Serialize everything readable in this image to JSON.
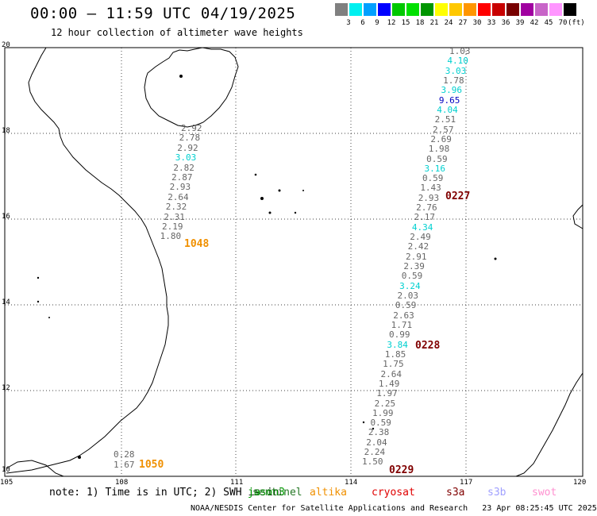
{
  "title": "00:00 – 11:59 UTC 04/19/2025",
  "subtitle": "12 hour collection of altimeter wave heights",
  "scale": {
    "labels": [
      "3",
      "6",
      "9",
      "12",
      "15",
      "18",
      "21",
      "24",
      "27",
      "30",
      "33",
      "36",
      "39",
      "42",
      "45",
      "70"
    ],
    "unit": "(ft)",
    "colors": [
      "#808080",
      "#00f0f0",
      "#00a0ff",
      "#0000ff",
      "#00c800",
      "#00e000",
      "#009600",
      "#ffff00",
      "#ffc800",
      "#ff9600",
      "#ff0000",
      "#c80000",
      "#780000",
      "#a000a0",
      "#c864c8",
      "#ff96ff",
      "#000000"
    ]
  },
  "axes": {
    "lon_labels": [
      "105",
      "108",
      "111",
      "114",
      "117",
      "120"
    ],
    "lat_labels": [
      "10",
      "12",
      "14",
      "16",
      "18",
      "20"
    ]
  },
  "passes": [
    {
      "label": "1048",
      "color": "#f09000"
    },
    {
      "label": "1050",
      "color": "#f09000"
    },
    {
      "label": "0227",
      "color": "#800000"
    },
    {
      "label": "0228",
      "color": "#800000"
    },
    {
      "label": "0229",
      "color": "#800000"
    }
  ],
  "track_west": [
    {
      "v": "2.92",
      "c": "#666666"
    },
    {
      "v": "2.78",
      "c": "#666666"
    },
    {
      "v": "2.92",
      "c": "#666666"
    },
    {
      "v": "3.03",
      "c": "#00d0d0"
    },
    {
      "v": "2.82",
      "c": "#666666"
    },
    {
      "v": "2.87",
      "c": "#666666"
    },
    {
      "v": "2.93",
      "c": "#666666"
    },
    {
      "v": "2.64",
      "c": "#666666"
    },
    {
      "v": "2.32",
      "c": "#666666"
    },
    {
      "v": "2.31",
      "c": "#666666"
    },
    {
      "v": "2.19",
      "c": "#666666"
    },
    {
      "v": "1.80",
      "c": "#666666"
    }
  ],
  "track_south": [
    {
      "v": "0.28",
      "c": "#666666"
    },
    {
      "v": "1.67",
      "c": "#666666"
    }
  ],
  "track_east": [
    {
      "v": "1.03",
      "c": "#666666"
    },
    {
      "v": "4.10",
      "c": "#00d0d0"
    },
    {
      "v": "3.03",
      "c": "#00d0d0"
    },
    {
      "v": "1.78",
      "c": "#666666"
    },
    {
      "v": "3.96",
      "c": "#00d0d0"
    },
    {
      "v": "9.65",
      "c": "#0000c0"
    },
    {
      "v": "4.04",
      "c": "#00d0d0"
    },
    {
      "v": "2.51",
      "c": "#666666"
    },
    {
      "v": "2.57",
      "c": "#666666"
    },
    {
      "v": "2.69",
      "c": "#666666"
    },
    {
      "v": "1.98",
      "c": "#666666"
    },
    {
      "v": "0.59",
      "c": "#666666"
    },
    {
      "v": "3.16",
      "c": "#00d0d0"
    },
    {
      "v": "0.59",
      "c": "#666666"
    },
    {
      "v": "1.43",
      "c": "#666666"
    },
    {
      "v": "2.93",
      "c": "#666666"
    },
    {
      "v": "2.76",
      "c": "#666666"
    },
    {
      "v": "2.17",
      "c": "#666666"
    },
    {
      "v": "4.34",
      "c": "#00d0d0"
    },
    {
      "v": "2.49",
      "c": "#666666"
    },
    {
      "v": "2.42",
      "c": "#666666"
    },
    {
      "v": "2.91",
      "c": "#666666"
    },
    {
      "v": "2.39",
      "c": "#666666"
    },
    {
      "v": "0.59",
      "c": "#666666"
    },
    {
      "v": "3.24",
      "c": "#00d0d0"
    },
    {
      "v": "2.03",
      "c": "#666666"
    },
    {
      "v": "0.59",
      "c": "#666666"
    },
    {
      "v": "2.63",
      "c": "#666666"
    },
    {
      "v": "1.71",
      "c": "#666666"
    },
    {
      "v": "0.99",
      "c": "#666666"
    },
    {
      "v": "3.84",
      "c": "#00d0d0"
    },
    {
      "v": "1.85",
      "c": "#666666"
    },
    {
      "v": "1.75",
      "c": "#666666"
    },
    {
      "v": "2.64",
      "c": "#666666"
    },
    {
      "v": "1.49",
      "c": "#666666"
    },
    {
      "v": "1.97",
      "c": "#666666"
    },
    {
      "v": "2.25",
      "c": "#666666"
    },
    {
      "v": "1.99",
      "c": "#666666"
    },
    {
      "v": "0.59",
      "c": "#666666"
    },
    {
      "v": "2.38",
      "c": "#666666"
    },
    {
      "v": "2.04",
      "c": "#666666"
    },
    {
      "v": "2.24",
      "c": "#666666"
    },
    {
      "v": "1.50",
      "c": "#666666"
    }
  ],
  "footer": {
    "note": "note: 1) Time is in UTC; 2) SWH is in",
    "sats": [
      {
        "name": "jason3",
        "color": "#00a000"
      },
      {
        "name": "sentinel",
        "color": "#006000"
      },
      {
        "name": "altika",
        "color": "#f09000"
      },
      {
        "name": "cryosat",
        "color": "#e00000"
      },
      {
        "name": "s3a",
        "color": "#800000"
      },
      {
        "name": "s3b",
        "color": "#a0a0ff"
      },
      {
        "name": "swot",
        "color": "#ff90d0"
      }
    ],
    "credit": "NOAA/NESDIS Center for Satellite Applications and Research",
    "timestamp": "23 Apr 08:25:45 UTC 2025"
  }
}
